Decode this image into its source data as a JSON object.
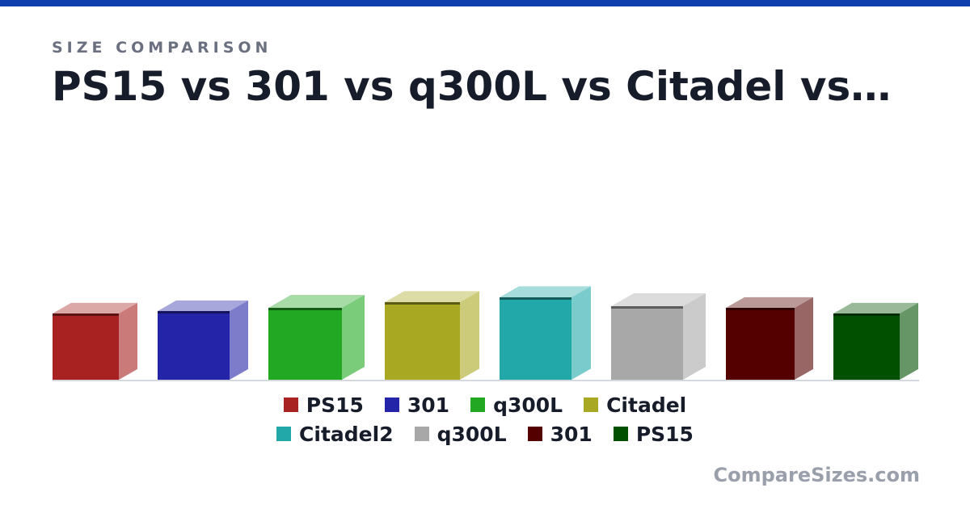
{
  "chart_data": {
    "type": "bar",
    "subtitle": "SIZE COMPARISON",
    "title": "PS15 vs 301 vs q300L vs Citadel vs…",
    "categories": [
      "PS15",
      "301",
      "q300L",
      "Citadel",
      "Citadel2",
      "q300L",
      "301",
      "PS15"
    ],
    "colors": [
      "#a82222",
      "#2424a8",
      "#22a822",
      "#a8a822",
      "#22a8a8",
      "#a8a8a8",
      "#550000",
      "#005000"
    ],
    "values": [
      82,
      85,
      89,
      96,
      102,
      91,
      89,
      82
    ],
    "widths": [
      82,
      89,
      91,
      93,
      89,
      89,
      85,
      82
    ],
    "depths": [
      23,
      23,
      28,
      24,
      24,
      28,
      23,
      23
    ],
    "watermark": "CompareSizes.com"
  }
}
